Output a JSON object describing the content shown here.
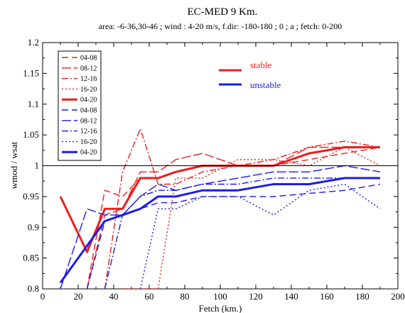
{
  "chart_data": {
    "type": "line",
    "title": "EC-MED  9 Km.",
    "subtitle": "area: -6-36,30-46 ; wind : 4-20 m/s, f.dir: -180-180 ; 0 ; a ; fetch: 0-200",
    "xlabel": "Fetch  (km.)",
    "ylabel": "wmod / wsat",
    "xlim": [
      0,
      200
    ],
    "ylim": [
      0.8,
      1.2
    ],
    "xticks": [
      "0",
      "20",
      "40",
      "60",
      "80",
      "100",
      "120",
      "140",
      "160",
      "180",
      "200"
    ],
    "yticks": [
      "0.8",
      "0.85",
      "0.9",
      "0.95",
      "1",
      "1.05",
      "1.1",
      "1.15",
      "1.2"
    ],
    "reference_line": 1,
    "grid": false,
    "legend_position": "top-left",
    "group_labels": [
      {
        "text": "stable",
        "color": "#ee1c1c"
      },
      {
        "text": "unstable",
        "color": "#1c1ce6"
      }
    ],
    "series": [
      {
        "name": "04-08",
        "group": "stable",
        "color": "#ee1c1c",
        "style": "dashed",
        "x": [
          25,
          35,
          45,
          55,
          65,
          75,
          90,
          110,
          130,
          150,
          170,
          190
        ],
        "y": [
          0.8,
          0.96,
          0.95,
          0.98,
          0.98,
          0.99,
          1.0,
          1.0,
          1.0,
          1.01,
          1.02,
          1.03
        ]
      },
      {
        "name": "08-12",
        "group": "stable",
        "color": "#ee1c1c",
        "style": "longdash",
        "x": [
          25,
          35,
          45,
          55,
          65,
          75,
          90,
          110,
          130,
          150,
          170,
          190
        ],
        "y": [
          0.8,
          0.92,
          0.93,
          0.99,
          0.99,
          1.01,
          1.02,
          1.0,
          1.0,
          1.03,
          1.03,
          1.03
        ]
      },
      {
        "name": "12-16",
        "group": "stable",
        "color": "#ee1c1c",
        "style": "dashdot",
        "x": [
          35,
          45,
          55,
          65,
          75,
          90,
          110,
          130,
          150,
          170,
          190
        ],
        "y": [
          0.8,
          0.99,
          1.06,
          0.97,
          0.97,
          0.99,
          1.0,
          1.01,
          1.03,
          1.04,
          1.03
        ]
      },
      {
        "name": "16-20",
        "group": "stable",
        "color": "#ee1c1c",
        "style": "dotted",
        "x": [
          45,
          65,
          75,
          90,
          110,
          130,
          150,
          170,
          190
        ],
        "y": [
          0.8,
          0.8,
          0.98,
          0.98,
          1.01,
          1.01,
          1.0,
          1.03,
          1.0
        ]
      },
      {
        "name": "04-20",
        "group": "stable",
        "color": "#ee1c1c",
        "style": "solid",
        "x": [
          10,
          25,
          35,
          45,
          55,
          65,
          75,
          90,
          110,
          130,
          150,
          170,
          190
        ],
        "y": [
          0.95,
          0.86,
          0.93,
          0.93,
          0.98,
          0.98,
          0.99,
          1.0,
          1.0,
          1.0,
          1.02,
          1.03,
          1.03
        ]
      },
      {
        "name": "04-08",
        "group": "unstable",
        "color": "#1c1ce6",
        "style": "dashed",
        "x": [
          25,
          35,
          45,
          55,
          65,
          75,
          90,
          110,
          130,
          150,
          170,
          190
        ],
        "y": [
          0.8,
          0.91,
          0.92,
          0.93,
          0.94,
          0.94,
          0.95,
          0.95,
          0.95,
          0.955,
          0.96,
          0.97
        ]
      },
      {
        "name": "08-12",
        "group": "unstable",
        "color": "#1c1ce6",
        "style": "longdash",
        "x": [
          10,
          25,
          35,
          45,
          55,
          65,
          75,
          90,
          110,
          130,
          150,
          170,
          190
        ],
        "y": [
          0.8,
          0.93,
          0.92,
          0.92,
          0.95,
          0.97,
          0.96,
          0.97,
          0.98,
          0.99,
          0.99,
          1.0,
          0.99
        ]
      },
      {
        "name": "12-16",
        "group": "unstable",
        "color": "#1c1ce6",
        "style": "dashdot",
        "x": [
          35,
          45,
          55,
          65,
          75,
          90,
          110,
          130,
          150,
          170,
          190
        ],
        "y": [
          0.8,
          0.92,
          0.95,
          0.96,
          0.96,
          0.97,
          0.97,
          0.98,
          0.98,
          0.98,
          0.98
        ]
      },
      {
        "name": "16-20",
        "group": "unstable",
        "color": "#1c1ce6",
        "style": "dotted",
        "x": [
          55,
          65,
          75,
          90,
          110,
          130,
          150,
          170,
          190
        ],
        "y": [
          0.8,
          0.93,
          0.93,
          0.95,
          0.95,
          0.92,
          0.96,
          0.97,
          0.93
        ]
      },
      {
        "name": "04-20",
        "group": "unstable",
        "color": "#1c1ce6",
        "style": "solid",
        "x": [
          10,
          25,
          35,
          45,
          55,
          65,
          75,
          90,
          110,
          130,
          150,
          170,
          190
        ],
        "y": [
          0.81,
          0.87,
          0.91,
          0.92,
          0.93,
          0.95,
          0.95,
          0.96,
          0.96,
          0.97,
          0.97,
          0.98,
          0.98
        ]
      }
    ]
  }
}
